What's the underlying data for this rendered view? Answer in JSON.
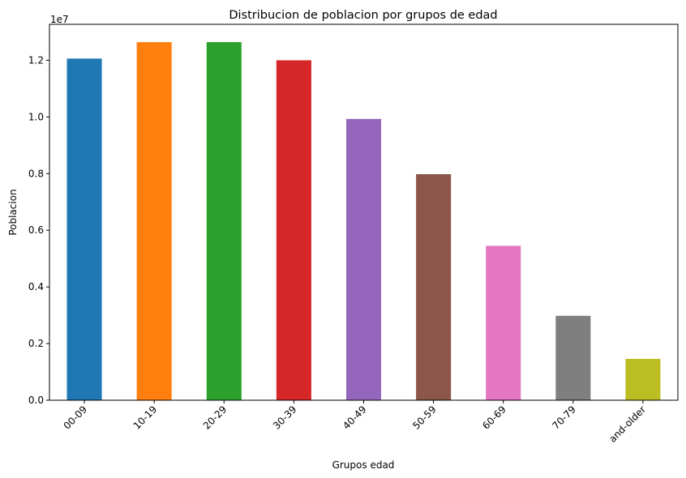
{
  "chart_data": {
    "type": "bar",
    "title": "Distribucion de poblacion por grupos de edad",
    "xlabel": "Grupos edad",
    "ylabel": "Poblacion",
    "y_offset_label": "1e7",
    "categories": [
      "00-09",
      "10-19",
      "20-29",
      "30-39",
      "40-49",
      "50-59",
      "60-69",
      "70-79",
      "and-older"
    ],
    "values": [
      12060000,
      12640000,
      12640000,
      12000000,
      9930000,
      7980000,
      5450000,
      2980000,
      1460000
    ],
    "ylim": [
      0,
      13270000
    ],
    "y_ticks": [
      0,
      2000000,
      4000000,
      6000000,
      8000000,
      10000000,
      12000000
    ],
    "y_tick_labels": [
      "0.0",
      "0.2",
      "0.4",
      "0.6",
      "0.8",
      "1.0",
      "1.2"
    ],
    "x_tick_rotation_deg": 45,
    "grid": false,
    "legend": "none",
    "colors": [
      "#1f77b4",
      "#ff7f0e",
      "#2ca02c",
      "#d62728",
      "#9467bd",
      "#8c564b",
      "#e377c2",
      "#7f7f7f",
      "#bcbd22"
    ]
  }
}
